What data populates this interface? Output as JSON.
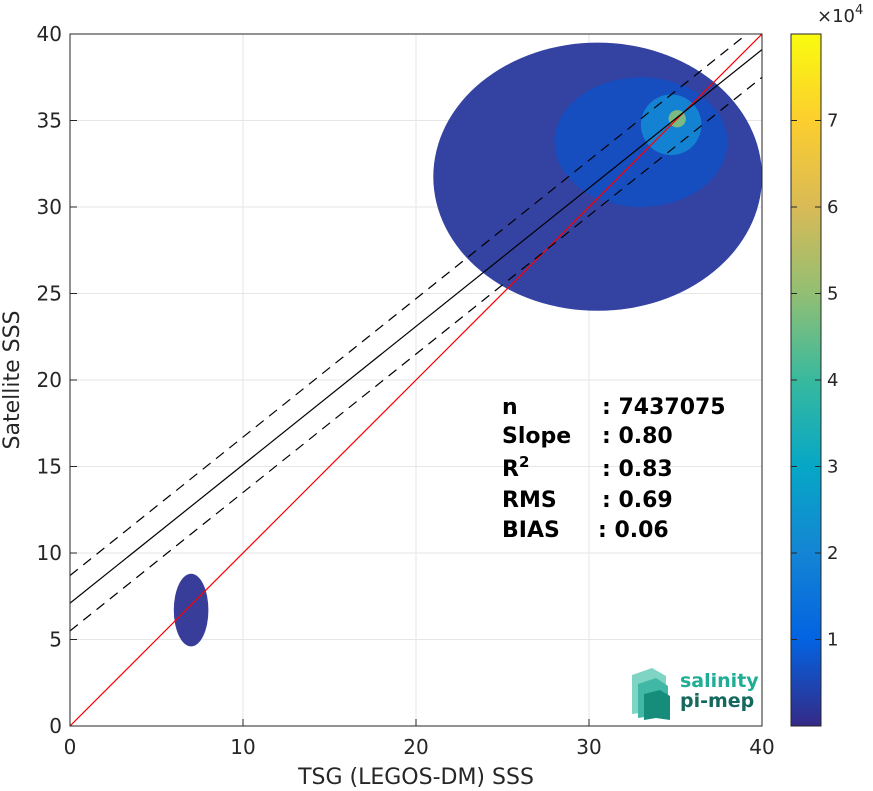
{
  "chart_data": {
    "type": "heatmap",
    "xlabel": "TSG (LEGOS-DM) SSS",
    "ylabel": "Satellite SSS",
    "xlim": [
      0,
      40
    ],
    "ylim": [
      0,
      40
    ],
    "x_ticks": [
      "0",
      "10",
      "20",
      "30",
      "40"
    ],
    "y_ticks": [
      "0",
      "5",
      "10",
      "15",
      "20",
      "25",
      "30",
      "35",
      "40"
    ],
    "grid": true,
    "colorbar": {
      "ticks": [
        "1",
        "2",
        "3",
        "4",
        "5",
        "6",
        "7"
      ],
      "exponent_label": "×10",
      "exponent_power": "4",
      "range": [
        0,
        80000
      ],
      "colormap": [
        "#352a87",
        "#0363e1",
        "#1485d4",
        "#06a7c6",
        "#38b99e",
        "#92bf73",
        "#d9ba56",
        "#fcce2e",
        "#f9fb0e"
      ]
    },
    "lines": [
      {
        "name": "identity",
        "x": [
          0,
          40
        ],
        "y": [
          0,
          40
        ],
        "color": "#ff0000",
        "style": "solid"
      },
      {
        "name": "regression",
        "x": [
          0,
          40
        ],
        "y": [
          7.1,
          39.1
        ],
        "color": "#000000",
        "style": "solid"
      },
      {
        "name": "regression-upper",
        "x": [
          0,
          40
        ],
        "y": [
          8.7,
          40.7
        ],
        "color": "#000000",
        "style": "dashed"
      },
      {
        "name": "regression-lower",
        "x": [
          0,
          40
        ],
        "y": [
          5.5,
          37.5
        ],
        "color": "#000000",
        "style": "dashed"
      }
    ],
    "density_regions": [
      {
        "x0": 21,
        "x1": 40,
        "y0": 24,
        "y1": 39.5,
        "level": 0.03
      },
      {
        "x0": 28,
        "x1": 38,
        "y0": 30,
        "y1": 37.5,
        "level": 0.08
      },
      {
        "x0": 33,
        "x1": 36.5,
        "y0": 33,
        "y1": 36.5,
        "level": 0.25
      },
      {
        "x0": 34.6,
        "x1": 35.6,
        "y0": 34.6,
        "y1": 35.6,
        "level": 0.6
      },
      {
        "x0": 6,
        "x1": 8,
        "y0": 4.6,
        "y1": 8.8,
        "level": 0.02
      }
    ],
    "stats": [
      {
        "label": "n",
        "value": ": 7437075"
      },
      {
        "label": "Slope",
        "value": ": 0.80"
      },
      {
        "label": "R",
        "sup": "2",
        "value": ": 0.83"
      },
      {
        "label": "RMS",
        "value": ": 0.69"
      },
      {
        "label": "BIAS",
        "value": ": 0.06"
      }
    ]
  },
  "logo": {
    "line1": "salinity",
    "line2": "pi-mep"
  }
}
